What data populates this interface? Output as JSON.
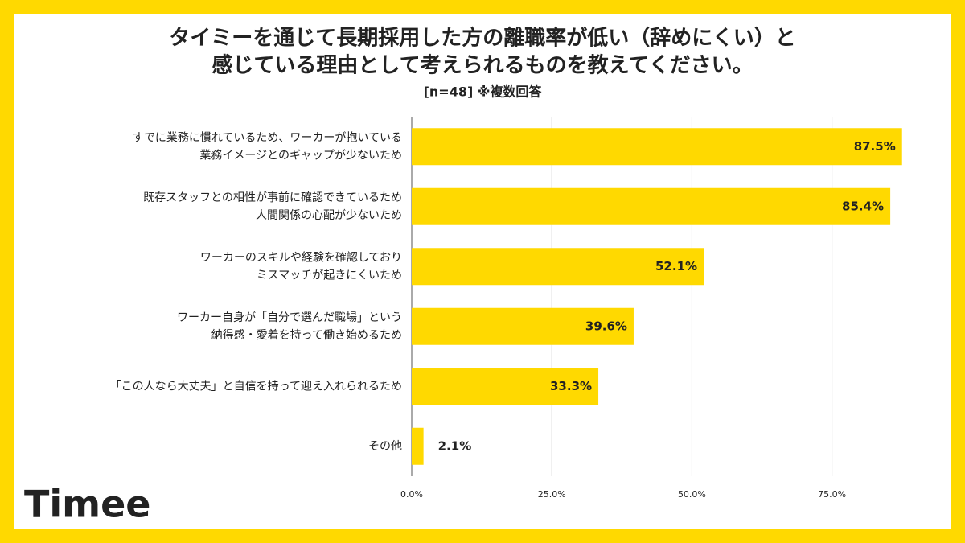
{
  "chart_data": {
    "type": "bar",
    "orientation": "horizontal",
    "title": [
      "タイミーを通じて長期採用した方の離職率が低い（辞めにくい）と",
      "感じている理由として考えられるものを教えてください。"
    ],
    "subtitle": "[n=48]  ※複数回答",
    "categories": [
      [
        "すでに業務に慣れているため、ワーカーが抱いている",
        "業務イメージとのギャップが少ないため"
      ],
      [
        "既存スタッフとの相性が事前に確認できているため",
        "人間関係の心配が少ないため"
      ],
      [
        "ワーカーのスキルや経験を確認しており",
        "ミスマッチが起きにくいため"
      ],
      [
        "ワーカー自身が「自分で選んだ職場」という",
        "納得感・愛着を持って働き始めるため"
      ],
      [
        "「この人なら大丈夫」と自信を持って迎え入れられるため"
      ],
      [
        "その他"
      ]
    ],
    "values": [
      87.5,
      85.4,
      52.1,
      39.6,
      33.3,
      2.1
    ],
    "value_labels": [
      "87.5%",
      "85.4%",
      "52.1%",
      "39.6%",
      "33.3%",
      "2.1%"
    ],
    "color": "#ffd900",
    "xlim": [
      0,
      95
    ],
    "xticks": [
      {
        "value": 0,
        "label": "0.0%"
      },
      {
        "value": 25,
        "label": "25.0%"
      },
      {
        "value": 50,
        "label": "50.0%"
      },
      {
        "value": 75,
        "label": "75.0%"
      }
    ],
    "grid": true
  },
  "logo": "Timee"
}
